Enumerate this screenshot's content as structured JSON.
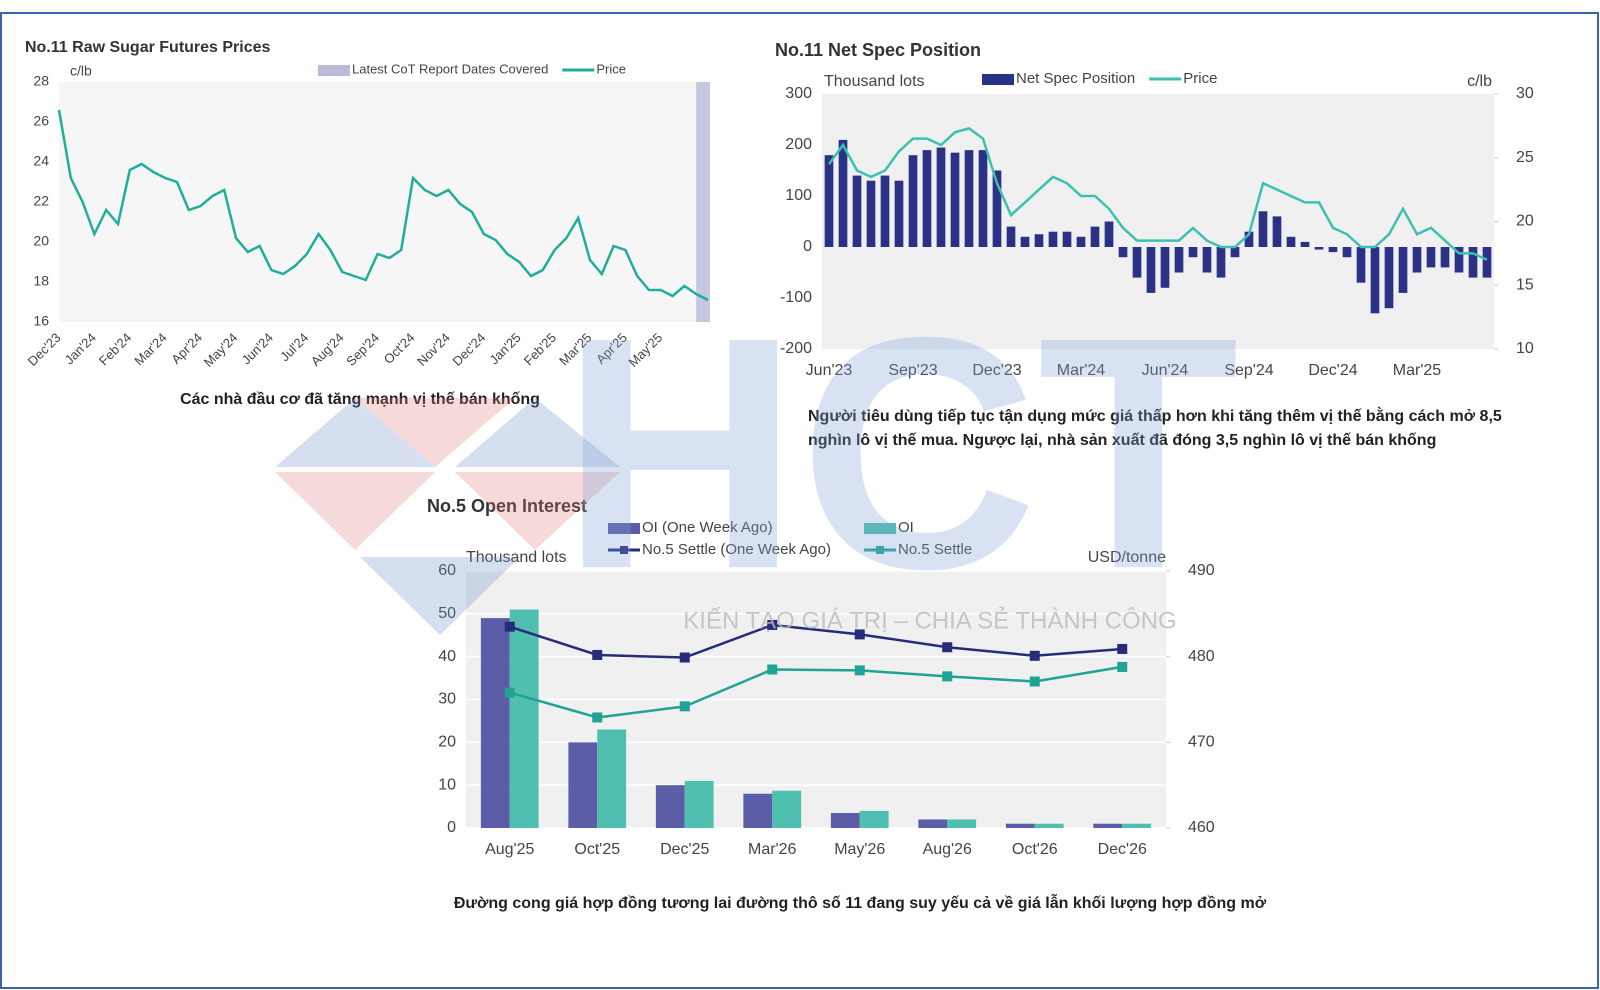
{
  "watermark": {
    "logo": "HCT",
    "slogan": "KIẾN TẠO GIÁ TRỊ – CHIA SẺ THÀNH CÔNG"
  },
  "chart_data": [
    {
      "type": "line",
      "title": "No.11 Raw Sugar Futures Prices",
      "y_label": "c/lb",
      "categories": [
        "Dec'23",
        null,
        null,
        "Jan'24",
        null,
        null,
        "Feb'24",
        null,
        null,
        "Mar'24",
        null,
        null,
        "Apr'24",
        null,
        null,
        "May'24",
        null,
        null,
        "Jun'24",
        null,
        null,
        "Jul'24",
        null,
        null,
        "Aug'24",
        null,
        null,
        "Sep'24",
        null,
        null,
        "Oct'24",
        null,
        null,
        "Nov'24",
        null,
        null,
        "Dec'24",
        null,
        null,
        "Jan'25",
        null,
        null,
        "Feb'25",
        null,
        null,
        "Mar'25",
        null,
        null,
        "Apr'25",
        null,
        null,
        "May'25",
        null,
        null,
        null,
        null
      ],
      "series": [
        {
          "name": "Price",
          "color": "#1fae9b",
          "values": [
            26.6,
            23.2,
            22.0,
            20.4,
            21.6,
            20.9,
            23.6,
            23.9,
            23.5,
            23.2,
            23.0,
            21.6,
            21.8,
            22.3,
            22.6,
            20.2,
            19.5,
            19.8,
            18.6,
            18.4,
            18.8,
            19.4,
            20.4,
            19.6,
            18.5,
            18.3,
            18.1,
            19.4,
            19.2,
            19.6,
            23.2,
            22.6,
            22.3,
            22.6,
            21.9,
            21.5,
            20.4,
            20.1,
            19.4,
            19.0,
            18.3,
            18.6,
            19.6,
            20.2,
            21.2,
            19.1,
            18.4,
            19.8,
            19.6,
            18.3,
            17.6,
            17.6,
            17.3,
            17.8,
            17.4,
            17.1
          ]
        }
      ],
      "highlight": {
        "name": "Latest CoT Report Dates Covered",
        "color": "#b8bcd9"
      },
      "ylim": [
        16,
        28
      ],
      "yticks": [
        16,
        18,
        20,
        22,
        24,
        26,
        28
      ],
      "grid": false,
      "caption": "Các nhà đầu cơ đã tăng mạnh vị thế bán khống"
    },
    {
      "type": "bar",
      "title": "No.11 Net Spec Position",
      "y_label": "Thousand lots",
      "y2_label": "c/lb",
      "categories": [
        "Jun'23",
        null,
        null,
        null,
        null,
        null,
        "Sep'23",
        null,
        null,
        null,
        null,
        null,
        "Dec'23",
        null,
        null,
        null,
        null,
        null,
        "Mar'24",
        null,
        null,
        null,
        null,
        null,
        "Jun'24",
        null,
        null,
        null,
        null,
        null,
        "Sep'24",
        null,
        null,
        null,
        null,
        null,
        "Dec'24",
        null,
        null,
        null,
        null,
        null,
        "Mar'25",
        null,
        null,
        null,
        null,
        null
      ],
      "series": [
        {
          "name": "Net Spec Position",
          "color": "#2b3185",
          "values": [
            180,
            210,
            140,
            130,
            140,
            130,
            180,
            190,
            195,
            185,
            190,
            190,
            150,
            40,
            20,
            25,
            30,
            30,
            20,
            40,
            50,
            -20,
            -60,
            -90,
            -80,
            -50,
            -20,
            -50,
            -60,
            -20,
            30,
            70,
            60,
            20,
            10,
            -5,
            -10,
            -20,
            -70,
            -130,
            -120,
            -90,
            -50,
            -40,
            -40,
            -50,
            -60,
            -60
          ]
        },
        {
          "name": "Price",
          "color": "#3cc1b0",
          "type": "line",
          "axis": "y2",
          "values": [
            24.5,
            26,
            24,
            23.5,
            24,
            25.5,
            26.5,
            26.5,
            26,
            27,
            27.3,
            26.5,
            23,
            20.5,
            21.5,
            22.5,
            23.5,
            23,
            22,
            22,
            21,
            19.5,
            18.5,
            18.5,
            18.5,
            18.5,
            19.5,
            18.5,
            18,
            18,
            19,
            23,
            22.5,
            22,
            21.5,
            21.5,
            19.5,
            19,
            18,
            18,
            19,
            21,
            19,
            19.5,
            18.5,
            17.5,
            17.5,
            17
          ]
        }
      ],
      "ylim": [
        -200,
        300
      ],
      "yticks": [
        -200,
        -100,
        0,
        100,
        200,
        300
      ],
      "y2lim": [
        10,
        30
      ],
      "y2ticks": [
        10,
        15,
        20,
        25,
        30
      ],
      "grid": false,
      "caption": "Người tiêu dùng tiếp tục tận dụng mức giá thấp hơn khi tăng thêm vị thế bằng cách mở 8,5 nghìn lô vị thế mua. Ngược lại, nhà sản xuất đã đóng 3,5 nghìn lô vị thế bán khống"
    },
    {
      "type": "bar",
      "title": "No.5 Open Interest",
      "y_label": "Thousand lots",
      "y2_label": "USD/tonne",
      "categories": [
        "Aug'25",
        "Oct'25",
        "Dec'25",
        "Mar'26",
        "May'26",
        "Aug'26",
        "Oct'26",
        "Dec'26"
      ],
      "series": [
        {
          "name": "OI (One Week Ago)",
          "color": "#5b5ea6",
          "values": [
            49,
            20,
            10,
            8,
            3.5,
            2,
            1,
            1
          ]
        },
        {
          "name": "OI",
          "color": "#4fbfb0",
          "values": [
            51,
            23,
            11,
            8.7,
            4,
            2,
            1,
            1
          ]
        },
        {
          "name": "No.5 Settle (One Week Ago)",
          "color": "#262c7a",
          "type": "line",
          "axis": "y2",
          "markers": true,
          "values": [
            483.5,
            480.2,
            479.9,
            483.7,
            482.6,
            481.1,
            480.1,
            480.9
          ]
        },
        {
          "name": "No.5 Settle",
          "color": "#1fa394",
          "type": "line",
          "axis": "y2",
          "markers": true,
          "values": [
            475.8,
            472.9,
            474.2,
            478.5,
            478.4,
            477.7,
            477.1,
            478.8
          ]
        }
      ],
      "ylim": [
        0,
        60
      ],
      "yticks": [
        0,
        10,
        20,
        30,
        40,
        50,
        60
      ],
      "y2lim": [
        460,
        490
      ],
      "y2ticks": [
        460,
        470,
        480,
        490
      ],
      "grid": true,
      "caption": "Đường cong giá hợp đồng tương lai đường thô số 11 đang suy yếu cả về giá lẫn khối lượng hợp đồng mở"
    }
  ]
}
